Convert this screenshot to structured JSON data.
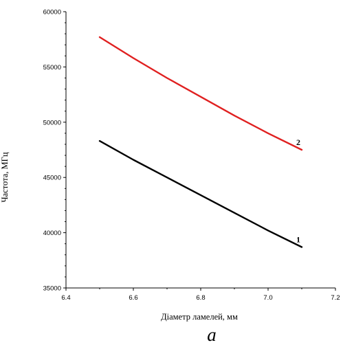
{
  "chart_data": {
    "type": "line",
    "title": "",
    "xlabel": "Діаметр ламелей, мм",
    "ylabel": "Частота, МГц",
    "xlim": [
      6.4,
      7.2
    ],
    "ylim": [
      35000,
      60000
    ],
    "x_ticks": [
      "6.4",
      "6.6",
      "6.8",
      "7.0",
      "7.2"
    ],
    "y_ticks": [
      "35000",
      "40000",
      "45000",
      "50000",
      "55000",
      "60000"
    ],
    "grid": false,
    "series": [
      {
        "name": "1",
        "color": "#000000",
        "x": [
          6.5,
          6.6,
          6.7,
          6.8,
          6.9,
          7.0,
          7.1
        ],
        "y": [
          48300,
          46600,
          45000,
          43400,
          41800,
          40200,
          38700
        ]
      },
      {
        "name": "2",
        "color": "#e02020",
        "x": [
          6.5,
          6.6,
          6.7,
          6.8,
          6.9,
          7.0,
          7.1
        ],
        "y": [
          57700,
          55800,
          54000,
          52300,
          50600,
          49000,
          47500
        ]
      }
    ]
  },
  "caption": "а"
}
